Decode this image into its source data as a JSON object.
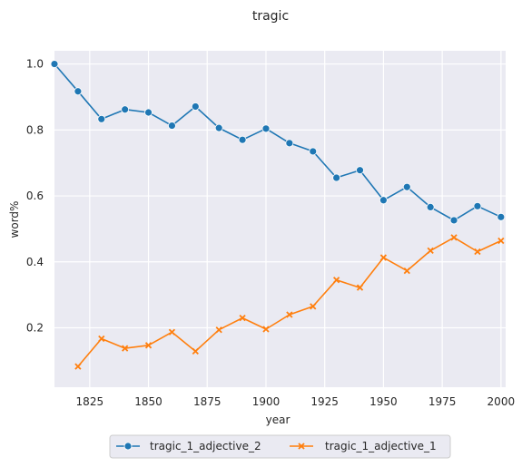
{
  "chart_data": {
    "type": "line",
    "title": "tragic",
    "xlabel": "year",
    "ylabel": "word%",
    "xlim": [
      1810,
      2002
    ],
    "ylim": [
      0.02,
      1.04
    ],
    "x_ticks": [
      1825,
      1850,
      1875,
      1900,
      1925,
      1950,
      1975,
      2000
    ],
    "y_ticks": [
      0.2,
      0.4,
      0.6,
      0.8,
      1.0
    ],
    "y_tick_labels": [
      "0.2",
      "0.4",
      "0.6",
      "0.8",
      "1.0"
    ],
    "grid": true,
    "legend_position": "bottom-center",
    "series": [
      {
        "name": "tragic_1_adjective_2",
        "color": "#1f77b4",
        "marker": "circle",
        "x": [
          1810,
          1820,
          1830,
          1840,
          1850,
          1860,
          1870,
          1880,
          1890,
          1900,
          1910,
          1920,
          1930,
          1940,
          1950,
          1960,
          1970,
          1980,
          1990,
          2000
        ],
        "y": [
          1.0,
          0.917,
          0.833,
          0.862,
          0.853,
          0.813,
          0.871,
          0.806,
          0.77,
          0.804,
          0.76,
          0.735,
          0.655,
          0.678,
          0.587,
          0.627,
          0.566,
          0.526,
          0.569,
          0.536
        ]
      },
      {
        "name": "tragic_1_adjective_1",
        "color": "#ff7f0e",
        "marker": "x",
        "x": [
          1820,
          1830,
          1840,
          1850,
          1860,
          1870,
          1880,
          1890,
          1900,
          1910,
          1920,
          1930,
          1940,
          1950,
          1960,
          1970,
          1980,
          1990,
          2000
        ],
        "y": [
          0.083,
          0.167,
          0.138,
          0.147,
          0.187,
          0.129,
          0.194,
          0.23,
          0.196,
          0.24,
          0.265,
          0.345,
          0.322,
          0.413,
          0.373,
          0.434,
          0.474,
          0.431,
          0.464
        ]
      }
    ]
  }
}
